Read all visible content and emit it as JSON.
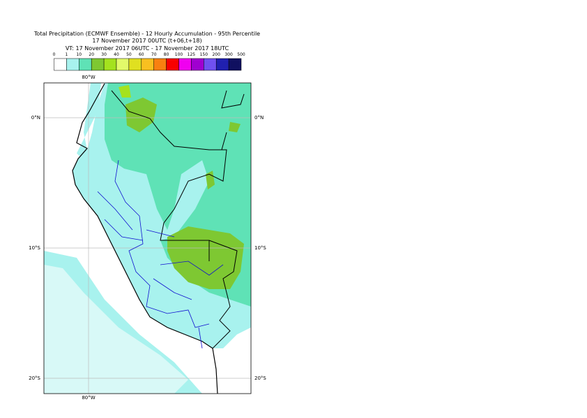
{
  "header": {
    "title": "Total Precipitation (ECMWF Ensemble) - 12 Hourly Accumulation - 95th Percentile",
    "subtitle": "17 November 2017 00UTC (t+06,t+18)",
    "valid_time": "VT: 17 November 2017 06UTC - 17 November 2017 18UTC"
  },
  "legend": {
    "labels": [
      "0",
      "1",
      "10",
      "20",
      "30",
      "40",
      "50",
      "60",
      "70",
      "80",
      "100",
      "125",
      "150",
      "200",
      "300",
      "500"
    ],
    "colors": [
      "#ffffff",
      "#a8f2ee",
      "#5fe2b6",
      "#7ec832",
      "#a4e21e",
      "#e2fa6a",
      "#e0e020",
      "#f8c020",
      "#f88010",
      "#f80000",
      "#f000f0",
      "#a000d0",
      "#7050f0",
      "#2020b0",
      "#101060"
    ]
  },
  "map": {
    "lon_labels": [
      "80°W",
      "80°W"
    ],
    "lat_labels": [
      "0°N",
      "10°S",
      "20°S"
    ]
  }
}
